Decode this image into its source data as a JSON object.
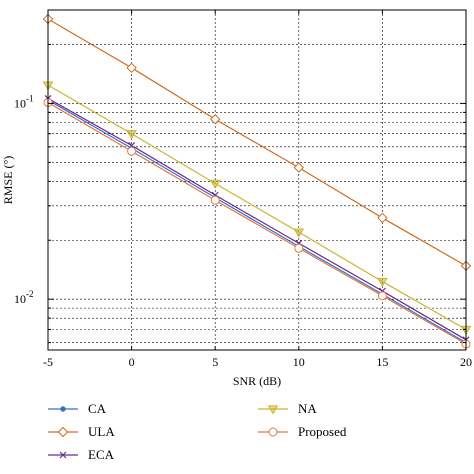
{
  "chart_data": {
    "type": "line",
    "title": "",
    "xlabel": "SNR (dB)",
    "ylabel": "RMSE (°)",
    "x": [
      -5,
      0,
      5,
      10,
      15,
      20
    ],
    "xlim": [
      -5,
      20
    ],
    "ylim": [
      0.0055,
      0.3
    ],
    "yscale": "log",
    "grid": true,
    "x_tick_labels": [
      "-5",
      "0",
      "5",
      "10",
      "15",
      "20"
    ],
    "y_tick_labels": [
      {
        "value": 0.1,
        "mantissa": "10",
        "exponent": "-1"
      },
      {
        "value": 0.01,
        "mantissa": "10",
        "exponent": "-2"
      }
    ],
    "legend_position": "bottom",
    "series": [
      {
        "name": "CA",
        "color": "#3c6fc4",
        "marker": "dot",
        "values": [
          0.104,
          0.059,
          0.033,
          0.0186,
          0.0106,
          0.006
        ]
      },
      {
        "name": "ULA",
        "color": "#d26b1e",
        "marker": "diamond",
        "values": [
          0.27,
          0.152,
          0.083,
          0.047,
          0.026,
          0.0148
        ]
      },
      {
        "name": "ECA",
        "color": "#6b2c8f",
        "marker": "x",
        "values": [
          0.106,
          0.061,
          0.034,
          0.0193,
          0.011,
          0.0062
        ]
      },
      {
        "name": "NA",
        "color": "#c9b534",
        "marker": "triangle-down",
        "values": [
          0.124,
          0.07,
          0.039,
          0.022,
          0.0123,
          0.007
        ]
      },
      {
        "name": "Proposed",
        "color": "#e07a43",
        "marker": "circle",
        "values": [
          0.101,
          0.057,
          0.032,
          0.0182,
          0.0104,
          0.0059
        ]
      }
    ]
  }
}
